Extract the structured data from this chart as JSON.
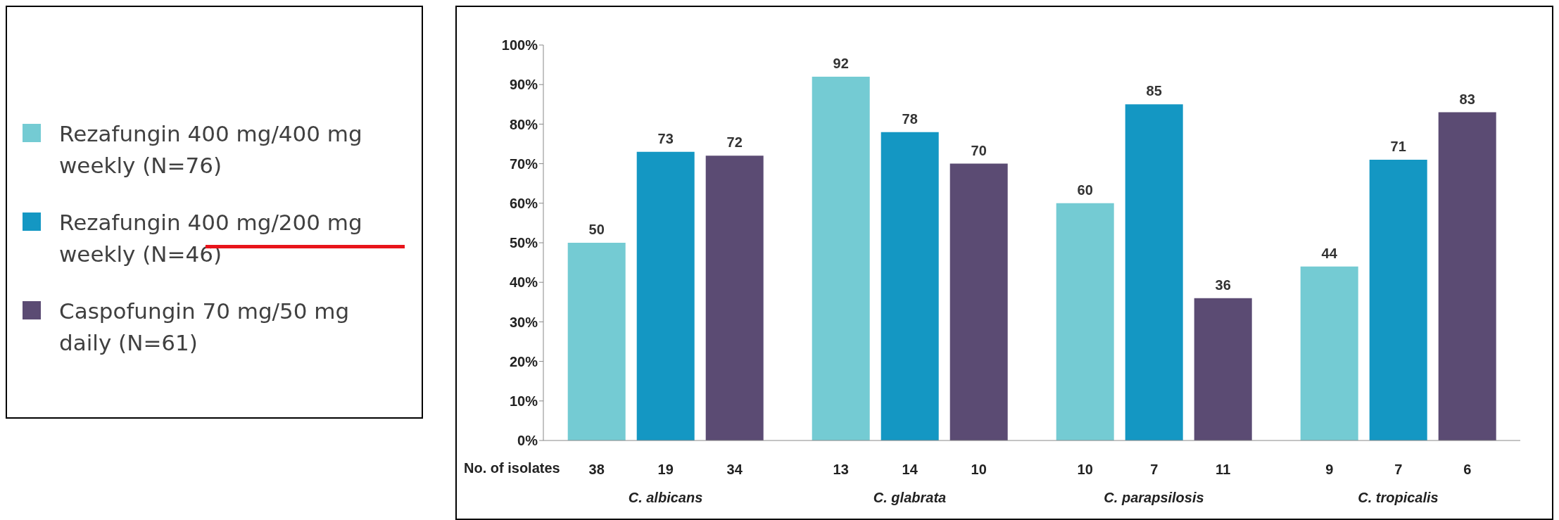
{
  "chart_data": {
    "type": "bar",
    "categories": [
      "C. albicans",
      "C. glabrata",
      "C. parapsilosis",
      "C. tropicalis"
    ],
    "series": [
      {
        "name": "Rezafungin 400 mg/400 mg weekly (N=76)",
        "color": "#74cbd3",
        "values": [
          50,
          92,
          60,
          44
        ]
      },
      {
        "name": "Rezafungin 400 mg/200 mg weekly (N=46)",
        "color": "#1497c3",
        "values": [
          73,
          78,
          85,
          71
        ]
      },
      {
        "name": "Caspofungin 70 mg/50 mg daily (N=61)",
        "color": "#5b4b73",
        "values": [
          72,
          70,
          36,
          83
        ]
      }
    ],
    "ylim": [
      0,
      100
    ],
    "yticks": [
      {
        "value": 0,
        "label": "0%"
      },
      {
        "value": 10,
        "label": "10%"
      },
      {
        "value": 20,
        "label": "20%"
      },
      {
        "value": 30,
        "label": "30%"
      },
      {
        "value": 40,
        "label": "40%"
      },
      {
        "value": 50,
        "label": "50%"
      },
      {
        "value": 60,
        "label": "60%"
      },
      {
        "value": 70,
        "label": "70%"
      },
      {
        "value": 80,
        "label": "80%"
      },
      {
        "value": 90,
        "label": "90%"
      },
      {
        "value": 100,
        "label": "100%"
      }
    ],
    "data_labels": true,
    "legend": "left",
    "annotations": [
      "No. of isolates",
      "38",
      "19",
      "34",
      "13",
      "14",
      "10",
      "10",
      "7",
      "11",
      "9",
      "7",
      "6"
    ]
  }
}
